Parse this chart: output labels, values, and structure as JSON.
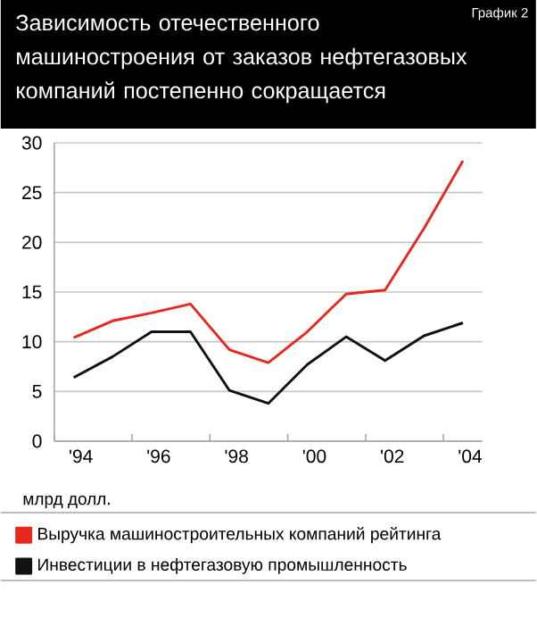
{
  "chart_data": {
    "type": "line",
    "title": "Зависимость отечественного машиностроения от заказов нефтегазовых компаний постепенно сокращается",
    "annotations": [
      "График 2"
    ],
    "ylabel": "млрд долл.",
    "categories": [
      "'94",
      null,
      "'96",
      null,
      "'98",
      null,
      "'00",
      null,
      "'02",
      null,
      "'04"
    ],
    "series": [
      {
        "name": "Выручка машиностроительных компаний рейтинга",
        "color": "#e8281e",
        "values": [
          10.4,
          12.1,
          12.9,
          13.8,
          9.2,
          7.9,
          11.0,
          14.8,
          15.2,
          21.4,
          28.2
        ]
      },
      {
        "name": "Инвестиции в нефтегазовую промышленность",
        "color": "#111111",
        "values": [
          6.4,
          8.5,
          11.0,
          11.0,
          5.1,
          3.8,
          7.7,
          10.5,
          8.1,
          10.6,
          11.9
        ]
      }
    ],
    "ylim": [
      0,
      30
    ],
    "yticks": [
      0,
      5,
      10,
      15,
      20,
      25,
      30
    ],
    "grid": "y",
    "legend": "bottom",
    "line_style": "solid"
  }
}
